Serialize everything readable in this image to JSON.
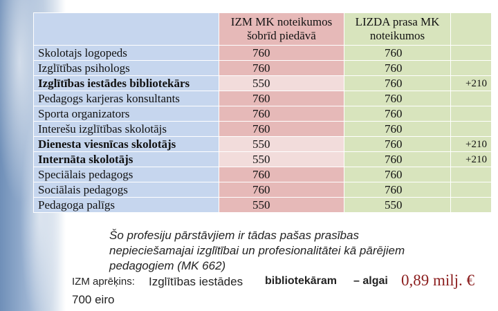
{
  "table": {
    "header": [
      "IZM MK noteikumos šobrīd piedāvā",
      "LIZDA prasa MK noteikumos"
    ],
    "rows": [
      [
        "Skolotajs logopeds",
        760,
        760
      ],
      [
        "Izglītības psihologs",
        760,
        760
      ],
      [
        "Izglītības iestādes bibliotekārs",
        550,
        760,
        "+210"
      ],
      [
        "Pedagogs karjeras konsultants",
        760,
        760
      ],
      [
        "Sporta organizators",
        760,
        760
      ],
      [
        "Interešu izglītības skolotājs",
        760,
        760
      ],
      [
        "Dienesta viesnīcas skolotājs",
        550,
        760,
        "+210"
      ],
      [
        "Internāta skolotājs",
        550,
        760,
        "+210"
      ],
      [
        "Speciālais pedagogs",
        760,
        760
      ],
      [
        "Sociālais pedagogs",
        760,
        760
      ],
      [
        "Pedagoga palīgs",
        550,
        550
      ]
    ]
  },
  "note": [
    "Šo profesiju pārstāvjiem ir tādas pašas prasības",
    "nepieciešamajai izglītībai un profesionalitātei kā pārējiem",
    "pedagogiem (MK 662)"
  ],
  "calc": {
    "prefix": "IZM aprēķins:",
    "subject": "Izglītības iestādes",
    "role": "bibliotekāram",
    "connector": "– algai",
    "amount": "0,89 milj. €",
    "salary": "700 eiro"
  }
}
